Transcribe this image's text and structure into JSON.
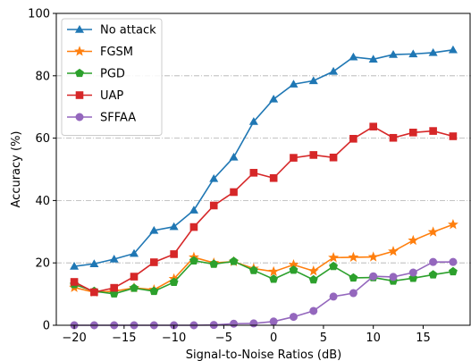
{
  "chart_data": {
    "type": "line",
    "title": "",
    "xlabel": "Signal-to-Noise Ratios (dB)",
    "ylabel": "Accuracy (%)",
    "xlim": [
      -21.8,
      19.8
    ],
    "ylim": [
      0,
      100
    ],
    "xticks": [
      -20,
      -15,
      -10,
      -5,
      0,
      5,
      10,
      15
    ],
    "yticks": [
      0,
      20,
      40,
      60,
      80,
      100
    ],
    "grid": "horizontal dash-dot",
    "legend_position": "top-left",
    "x": [
      -20,
      -18,
      -16,
      -14,
      -12,
      -10,
      -8,
      -6,
      -4,
      -2,
      0,
      2,
      4,
      6,
      8,
      10,
      12,
      14,
      16,
      18
    ],
    "series": [
      {
        "name": "No attack",
        "color": "#1f77b4",
        "marker": "triangle",
        "values": [
          18.9,
          19.7,
          21.2,
          23.0,
          30.4,
          31.6,
          36.9,
          47.0,
          53.9,
          65.3,
          72.5,
          77.3,
          78.4,
          81.4,
          86.0,
          85.3,
          86.8,
          87.0,
          87.4,
          88.3
        ]
      },
      {
        "name": "FGSM",
        "color": "#ff7f0e",
        "marker": "star",
        "values": [
          12.1,
          10.6,
          10.9,
          12.0,
          11.4,
          14.9,
          21.8,
          20.0,
          20.4,
          18.2,
          17.2,
          19.4,
          17.4,
          21.7,
          21.8,
          21.9,
          23.7,
          27.2,
          29.9,
          32.3
        ]
      },
      {
        "name": "PGD",
        "color": "#2ca02c",
        "marker": "pentagon",
        "values": [
          13.1,
          10.9,
          10.1,
          11.9,
          10.9,
          13.8,
          20.7,
          19.6,
          20.5,
          17.6,
          14.8,
          17.7,
          14.6,
          18.9,
          15.2,
          15.3,
          14.2,
          15.1,
          16.2,
          17.2
        ]
      },
      {
        "name": "UAP",
        "color": "#d62728",
        "marker": "square",
        "values": [
          13.9,
          10.6,
          12.0,
          15.6,
          20.2,
          22.8,
          31.5,
          38.4,
          42.7,
          48.9,
          47.2,
          53.7,
          54.6,
          53.8,
          59.8,
          63.7,
          60.1,
          61.8,
          62.3,
          60.6
        ]
      },
      {
        "name": "SFFAA",
        "color": "#9467bd",
        "marker": "circle",
        "values": [
          0.0,
          0.0,
          0.0,
          0.0,
          0.0,
          0.0,
          0.0,
          0.1,
          0.5,
          0.6,
          1.2,
          2.7,
          4.6,
          9.2,
          10.3,
          15.7,
          15.5,
          16.9,
          20.3,
          20.3
        ]
      }
    ]
  }
}
